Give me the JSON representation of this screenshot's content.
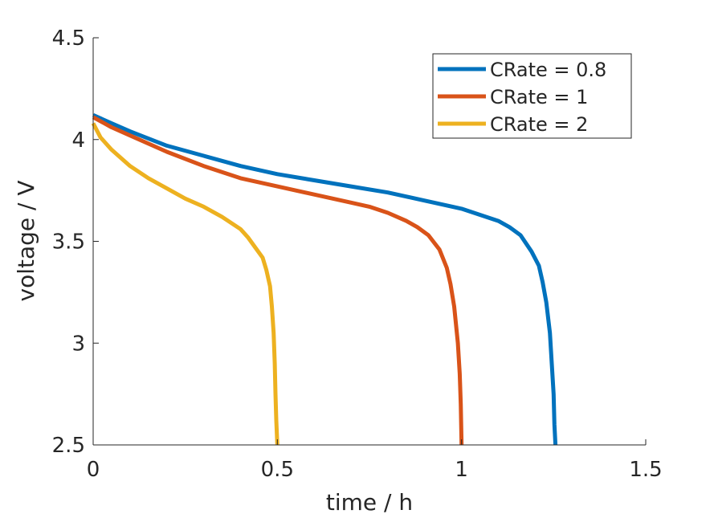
{
  "chart_data": {
    "type": "line",
    "title": "",
    "xlabel": "time / h",
    "ylabel": "voltage / V",
    "xlim": [
      0,
      1.5
    ],
    "ylim": [
      2.5,
      4.5
    ],
    "xticks": [
      "0",
      "0.5",
      "1",
      "1.5"
    ],
    "yticks": [
      "2.5",
      "3",
      "3.5",
      "4",
      "4.5"
    ],
    "grid": false,
    "legend_position": "top-right",
    "series": [
      {
        "name": "CRate = 0.8",
        "color": "#0072BD",
        "x": [
          0,
          0.05,
          0.1,
          0.2,
          0.3,
          0.4,
          0.5,
          0.6,
          0.7,
          0.8,
          0.9,
          1.0,
          1.05,
          1.1,
          1.13,
          1.16,
          1.19,
          1.21,
          1.22,
          1.23,
          1.24,
          1.245,
          1.25,
          1.252,
          1.255
        ],
        "y": [
          4.12,
          4.08,
          4.04,
          3.97,
          3.92,
          3.87,
          3.83,
          3.8,
          3.77,
          3.74,
          3.7,
          3.66,
          3.63,
          3.6,
          3.57,
          3.53,
          3.45,
          3.38,
          3.3,
          3.2,
          3.05,
          2.9,
          2.75,
          2.6,
          2.5
        ]
      },
      {
        "name": "CRate = 1",
        "color": "#D95319",
        "x": [
          0,
          0.05,
          0.1,
          0.2,
          0.3,
          0.4,
          0.5,
          0.6,
          0.7,
          0.75,
          0.8,
          0.85,
          0.88,
          0.91,
          0.94,
          0.96,
          0.97,
          0.98,
          0.99,
          0.995,
          0.998,
          1.0
        ],
        "y": [
          4.11,
          4.06,
          4.02,
          3.94,
          3.87,
          3.81,
          3.77,
          3.73,
          3.69,
          3.67,
          3.64,
          3.6,
          3.57,
          3.53,
          3.46,
          3.37,
          3.29,
          3.18,
          3.0,
          2.85,
          2.7,
          2.5
        ]
      },
      {
        "name": "CRate = 2",
        "color": "#EDB120",
        "x": [
          0,
          0.02,
          0.05,
          0.1,
          0.15,
          0.2,
          0.25,
          0.3,
          0.35,
          0.4,
          0.42,
          0.44,
          0.46,
          0.47,
          0.48,
          0.485,
          0.49,
          0.493,
          0.495,
          0.497,
          0.5
        ],
        "y": [
          4.08,
          4.01,
          3.95,
          3.87,
          3.81,
          3.76,
          3.71,
          3.67,
          3.62,
          3.56,
          3.52,
          3.47,
          3.42,
          3.36,
          3.28,
          3.18,
          3.05,
          2.9,
          2.75,
          2.62,
          2.5
        ]
      }
    ]
  }
}
